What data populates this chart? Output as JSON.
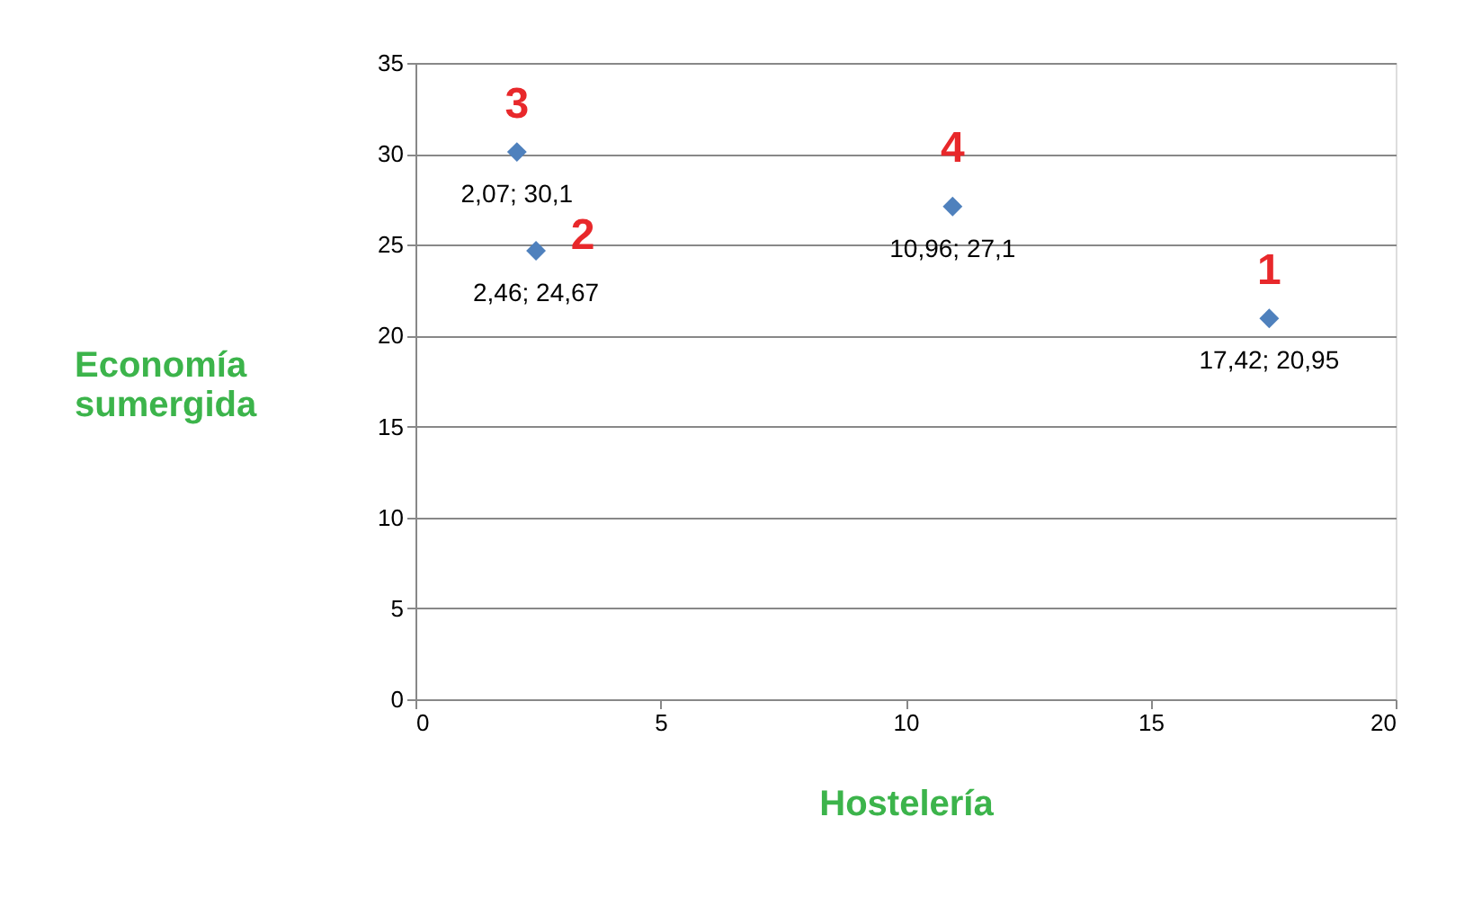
{
  "chart_data": {
    "type": "scatter",
    "xlabel": "Hostelería",
    "ylabel": "Economía sumergida",
    "x": [
      17.42,
      2.46,
      2.07,
      10.96
    ],
    "series": [
      {
        "color": "#4f81bd",
        "values": [
          20.95,
          24.67,
          30.1,
          27.1
        ],
        "value_labels": [
          "17,42; 20,95",
          "2,46; 24,67",
          "2,07; 30,1",
          "10,96; 27,1"
        ]
      }
    ],
    "annotations": [
      {
        "text": "1",
        "x": 17.42,
        "y": 20.95
      },
      {
        "text": "2",
        "x": 2.46,
        "y": 24.67
      },
      {
        "text": "3",
        "x": 2.07,
        "y": 30.1
      },
      {
        "text": "4",
        "x": 10.96,
        "y": 27.1
      }
    ],
    "xlim": [
      0,
      20
    ],
    "xticks": [
      0,
      5,
      10,
      15,
      20
    ],
    "ylim": [
      0,
      35
    ],
    "yticks": [
      0,
      5,
      10,
      15,
      20,
      25,
      30,
      35
    ],
    "grid": "y",
    "marker": "diamond"
  }
}
